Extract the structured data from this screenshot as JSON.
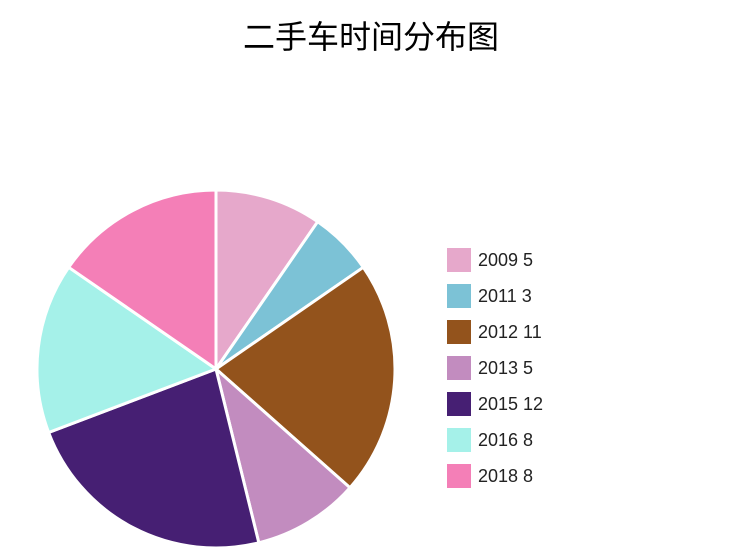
{
  "chart_data": {
    "type": "pie",
    "title": "二手车时间分布图",
    "categories": [
      "2009",
      "2011",
      "2012",
      "2013",
      "2015",
      "2016",
      "2018"
    ],
    "values": [
      5,
      3,
      11,
      5,
      12,
      8,
      8
    ],
    "colors": [
      "#e6a8cb",
      "#7cc2d6",
      "#93531c",
      "#c28cbf",
      "#461f73",
      "#a5f1e9",
      "#f47fb7"
    ],
    "legend_labels": [
      "2009 5",
      "2011 3",
      "2012 11",
      "2013 5",
      "2015 12",
      "2016 8",
      "2018 8"
    ],
    "legend_position": "right",
    "start_angle": "top",
    "direction": "clockwise"
  }
}
